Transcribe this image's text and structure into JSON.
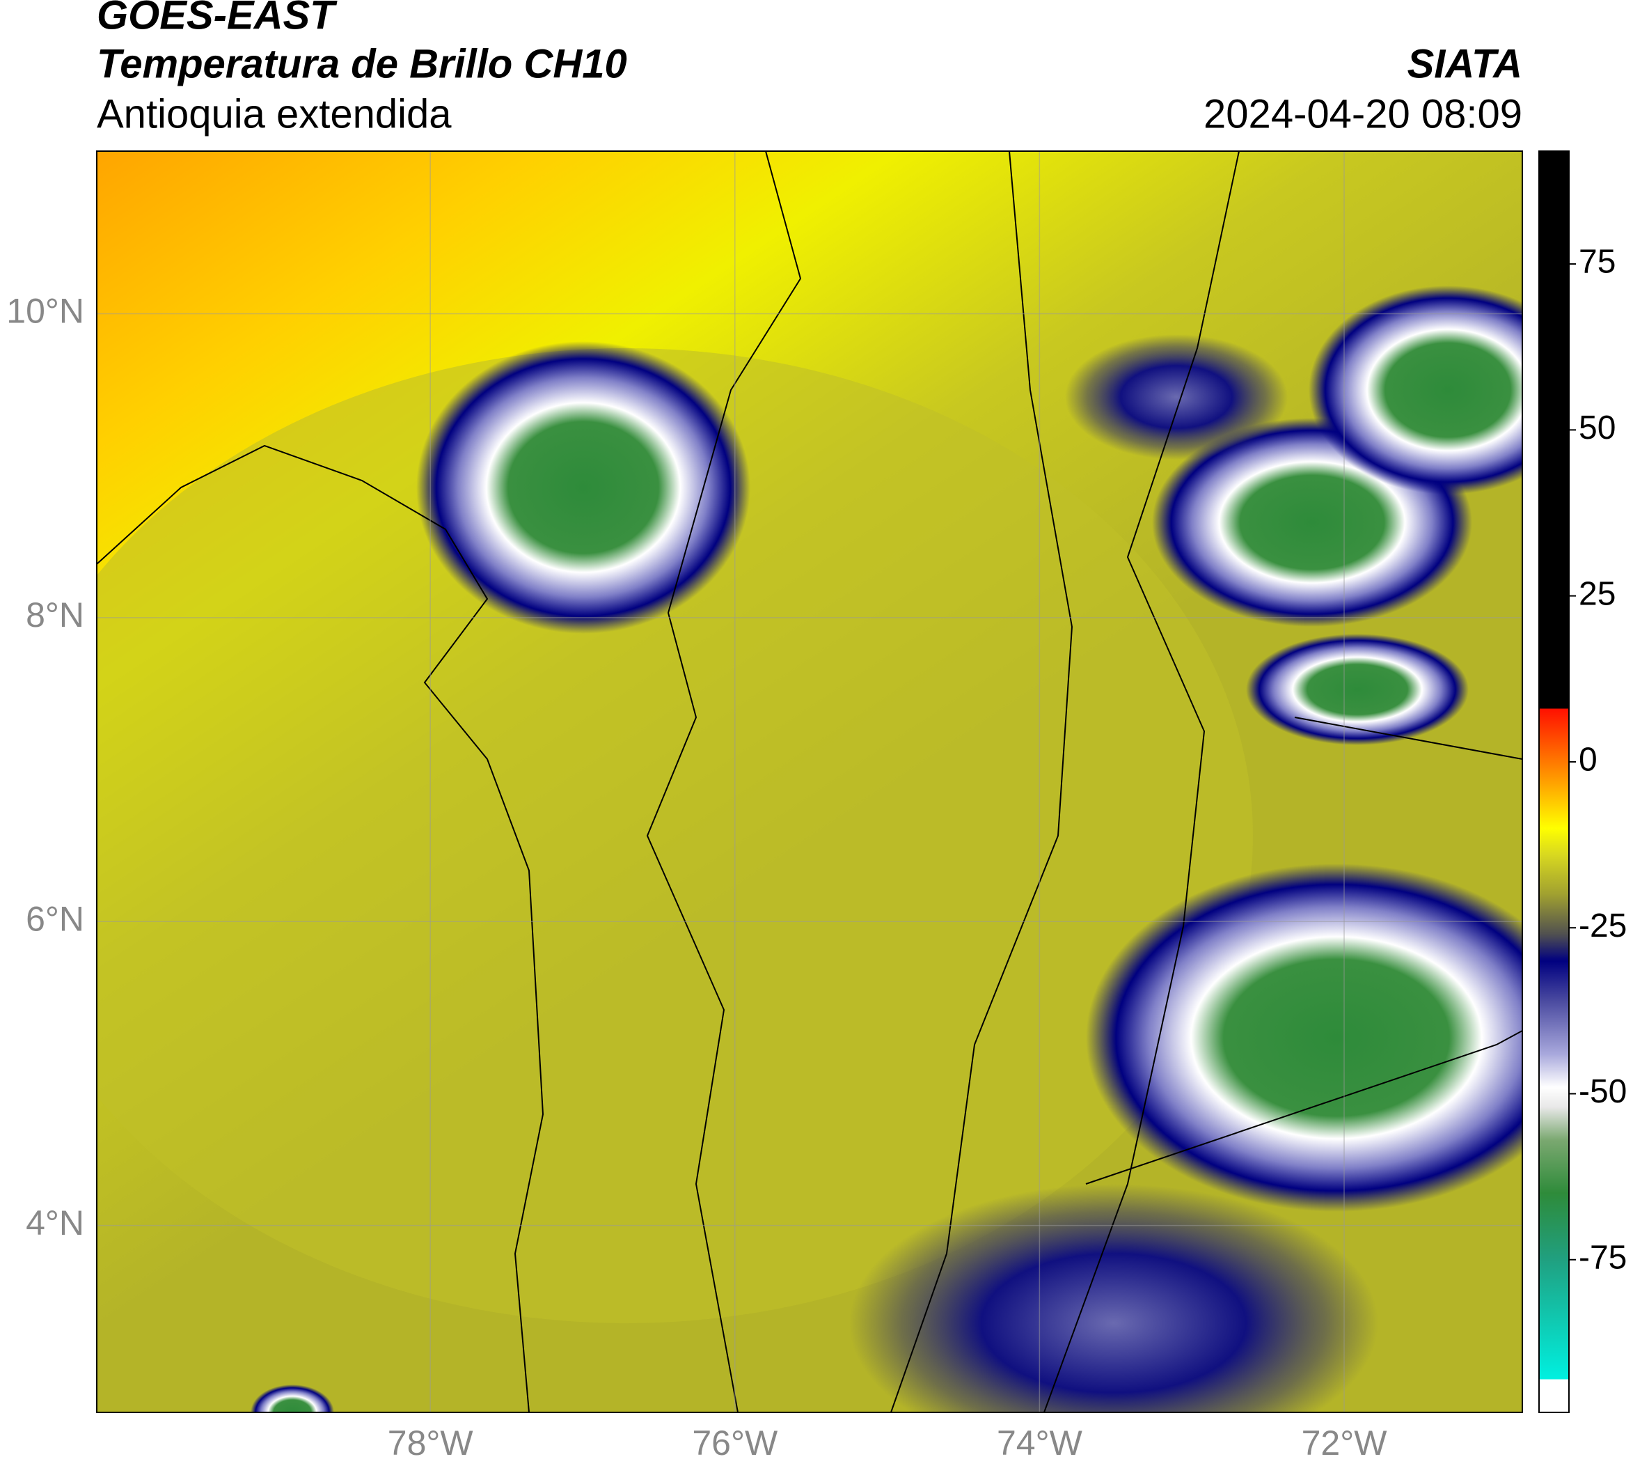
{
  "header": {
    "title": "GOES-EAST",
    "subtitle": "Temperatura de Brillo CH10",
    "region": "Antioquia extendida",
    "source": "SIATA",
    "datetime": "2024-04-20 08:09"
  },
  "map": {
    "lon_range": [
      -80.19,
      -70.83
    ],
    "lat_range": [
      2.77,
      11.07
    ],
    "grid": true,
    "lon_ticks": [
      {
        "value": -78,
        "label": "78°W"
      },
      {
        "value": -76,
        "label": "76°W"
      },
      {
        "value": -74,
        "label": "74°W"
      },
      {
        "value": -72,
        "label": "72°W"
      }
    ],
    "lat_ticks": [
      {
        "value": 10,
        "label": "10°N"
      },
      {
        "value": 8,
        "label": "8°N"
      },
      {
        "value": 6,
        "label": "6°N"
      },
      {
        "value": 4,
        "label": "4°N"
      }
    ]
  },
  "colorbar": {
    "range": [
      -98,
      92
    ],
    "ticks": [
      75,
      50,
      25,
      0,
      -25,
      -50,
      -75
    ],
    "stops": [
      {
        "value": -98,
        "color": "#ffffff"
      },
      {
        "value": -93,
        "color": "#ffffff"
      },
      {
        "value": -93,
        "color": "#00f0e0"
      },
      {
        "value": -75,
        "color": "#20a080"
      },
      {
        "value": -65,
        "color": "#2e8b3a"
      },
      {
        "value": -57,
        "color": "#7aa870"
      },
      {
        "value": -52,
        "color": "#e8e8e8"
      },
      {
        "value": -49,
        "color": "#ffffff"
      },
      {
        "value": -44,
        "color": "#a8a8dc"
      },
      {
        "value": -36,
        "color": "#4a4aa0"
      },
      {
        "value": -30,
        "color": "#000080"
      },
      {
        "value": -26,
        "color": "#505050"
      },
      {
        "value": -20,
        "color": "#a0a030"
      },
      {
        "value": -14,
        "color": "#d8d820"
      },
      {
        "value": -10,
        "color": "#ffff00"
      },
      {
        "value": -3,
        "color": "#ffa000"
      },
      {
        "value": 8,
        "color": "#ff1000"
      },
      {
        "value": 8,
        "color": "#000000"
      },
      {
        "value": 92,
        "color": "#000000"
      }
    ]
  }
}
